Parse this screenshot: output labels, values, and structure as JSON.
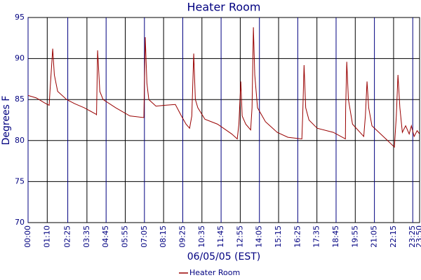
{
  "chart_data": {
    "type": "line",
    "title": "Heater Room",
    "xlabel": "06/05/05 (EST)",
    "ylabel": "Degrees F",
    "x": [
      0,
      30,
      60,
      77,
      80,
      90,
      96,
      108,
      141,
      170,
      205,
      249,
      250,
      254,
      262,
      274,
      320,
      372,
      423,
      424,
      428,
      434,
      441,
      467,
      500,
      538,
      560,
      577,
      590,
      598,
      605,
      611,
      620,
      646,
      692,
      744,
      764,
      770,
      777,
      782,
      795,
      813,
      818,
      823,
      828,
      838,
      867,
      910,
      949,
      1000,
      1003,
      1008,
      1014,
      1026,
      1056,
      1115,
      1159,
      1160,
      1164,
      1170,
      1185,
      1226,
      1232,
      1238,
      1244,
      1256,
      1313,
      1338,
      1345,
      1351,
      1358,
      1367,
      1379,
      1392,
      1400,
      1410,
      1421,
      1430
    ],
    "series": [
      {
        "name": "Heater Room",
        "color": "#990000",
        "values": [
          85.5,
          85.2,
          84.6,
          84.3,
          86,
          91.2,
          88,
          86,
          85,
          84.5,
          84,
          83.2,
          83.1,
          91,
          86,
          85,
          84,
          83,
          82.8,
          85,
          92.6,
          87,
          85,
          84.2,
          84.3,
          84.4,
          83,
          82,
          81.5,
          83,
          90.6,
          85,
          84,
          82.6,
          82,
          80.8,
          80.2,
          82,
          87.2,
          83,
          82,
          81.3,
          84,
          93.8,
          88,
          84,
          82.3,
          81,
          80.4,
          80.2,
          83,
          89.2,
          84,
          82.5,
          81.5,
          81,
          80.2,
          84,
          89.6,
          85,
          82,
          80.5,
          83,
          87.2,
          84,
          81.8,
          80,
          79.2,
          83,
          88,
          84,
          81,
          81.8,
          80.8,
          81.8,
          80.5,
          81.2,
          80.8
        ]
      }
    ],
    "xlim": [
      0,
      1430
    ],
    "xticks": [
      {
        "value": 0,
        "label": "00:00"
      },
      {
        "value": 70,
        "label": "01:10"
      },
      {
        "value": 145,
        "label": "02:25"
      },
      {
        "value": 215,
        "label": "03:35"
      },
      {
        "value": 285,
        "label": "04:45"
      },
      {
        "value": 355,
        "label": "05:55"
      },
      {
        "value": 425,
        "label": "07:05"
      },
      {
        "value": 495,
        "label": "08:15"
      },
      {
        "value": 565,
        "label": "09:25"
      },
      {
        "value": 635,
        "label": "10:35"
      },
      {
        "value": 705,
        "label": "11:45"
      },
      {
        "value": 775,
        "label": "12:55"
      },
      {
        "value": 845,
        "label": "14:05"
      },
      {
        "value": 915,
        "label": "15:15"
      },
      {
        "value": 985,
        "label": "16:25"
      },
      {
        "value": 1055,
        "label": "17:35"
      },
      {
        "value": 1125,
        "label": "18:45"
      },
      {
        "value": 1195,
        "label": "19:55"
      },
      {
        "value": 1265,
        "label": "21:05"
      },
      {
        "value": 1335,
        "label": "22:15"
      },
      {
        "value": 1405,
        "label": "23:25"
      },
      {
        "value": 1430,
        "label": "23:50"
      }
    ],
    "ylim": [
      70,
      95
    ],
    "yticks": [
      70,
      75,
      80,
      85,
      90,
      95
    ],
    "grid": true,
    "legend": "bottom"
  }
}
